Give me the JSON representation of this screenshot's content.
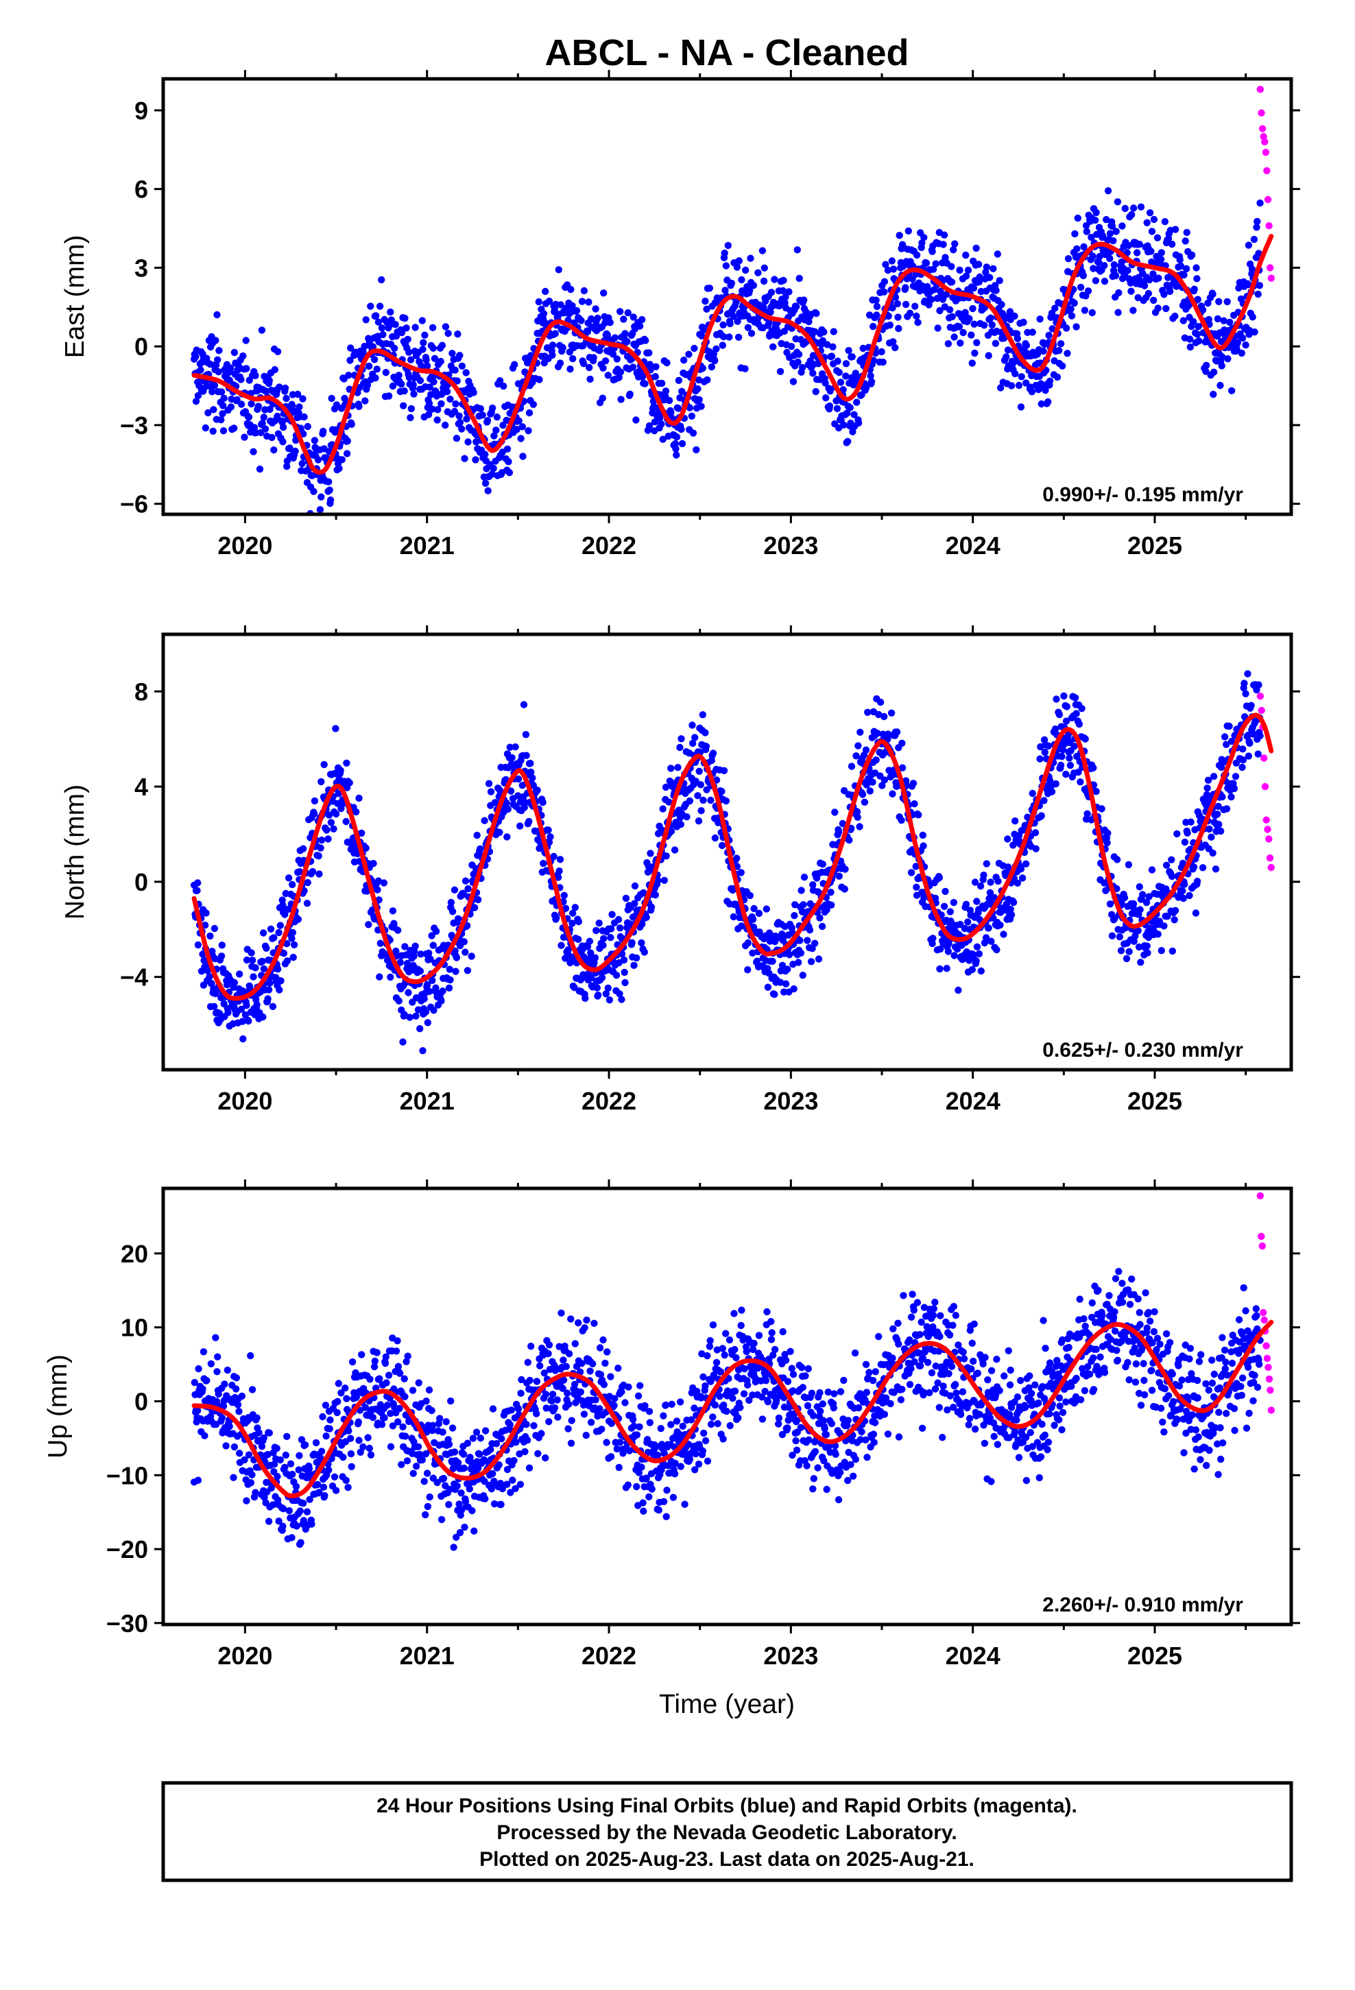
{
  "colors": {
    "final_orbits": "#0000ff",
    "rapid_orbits": "#ff00ff",
    "trend": "#ff0000",
    "frame": "#000000"
  },
  "chart_data": {
    "type": "scatter",
    "title": "ABCL  - NA - Cleaned",
    "xlabel": "Time (year)",
    "x_ticks": [
      2020,
      2021,
      2022,
      2023,
      2024,
      2025
    ],
    "xlim": [
      2019.55,
      2025.75
    ],
    "data_start": 2019.72,
    "data_end": 2025.64,
    "rapid_start": 2025.58,
    "grid": false,
    "panels": [
      {
        "name": "East",
        "ylabel": "East (mm)",
        "ylim": [
          -6.4,
          10.2
        ],
        "y_ticks": [
          -6,
          -3,
          0,
          3,
          6,
          9
        ],
        "y_tick_labels": [
          "−6",
          "−3",
          "0",
          "3",
          "6",
          "9"
        ],
        "rate_text": "0.990+/- 0.195 mm/yr",
        "scatter_sd": 0.95,
        "trend_points": [
          [
            2019.72,
            -1.1
          ],
          [
            2019.85,
            -1.3
          ],
          [
            2019.95,
            -1.7
          ],
          [
            2020.05,
            -2.0
          ],
          [
            2020.15,
            -2.0
          ],
          [
            2020.25,
            -2.7
          ],
          [
            2020.33,
            -4.0
          ],
          [
            2020.38,
            -4.7
          ],
          [
            2020.44,
            -4.7
          ],
          [
            2020.5,
            -3.8
          ],
          [
            2020.55,
            -2.7
          ],
          [
            2020.62,
            -1.2
          ],
          [
            2020.68,
            -0.3
          ],
          [
            2020.75,
            -0.2
          ],
          [
            2020.85,
            -0.6
          ],
          [
            2020.95,
            -0.9
          ],
          [
            2021.05,
            -1.0
          ],
          [
            2021.15,
            -1.5
          ],
          [
            2021.25,
            -2.7
          ],
          [
            2021.33,
            -3.8
          ],
          [
            2021.38,
            -3.9
          ],
          [
            2021.45,
            -3.1
          ],
          [
            2021.55,
            -1.3
          ],
          [
            2021.63,
            0.2
          ],
          [
            2021.7,
            0.9
          ],
          [
            2021.78,
            0.8
          ],
          [
            2021.88,
            0.3
          ],
          [
            2022.0,
            0.1
          ],
          [
            2022.1,
            -0.1
          ],
          [
            2022.2,
            -0.9
          ],
          [
            2022.28,
            -2.2
          ],
          [
            2022.34,
            -2.9
          ],
          [
            2022.4,
            -2.6
          ],
          [
            2022.48,
            -0.9
          ],
          [
            2022.56,
            0.8
          ],
          [
            2022.63,
            1.7
          ],
          [
            2022.7,
            1.9
          ],
          [
            2022.78,
            1.5
          ],
          [
            2022.88,
            1.1
          ],
          [
            2023.0,
            0.9
          ],
          [
            2023.1,
            0.3
          ],
          [
            2023.2,
            -0.9
          ],
          [
            2023.28,
            -1.9
          ],
          [
            2023.34,
            -1.9
          ],
          [
            2023.4,
            -1.1
          ],
          [
            2023.48,
            0.6
          ],
          [
            2023.56,
            2.1
          ],
          [
            2023.63,
            2.8
          ],
          [
            2023.7,
            2.9
          ],
          [
            2023.78,
            2.6
          ],
          [
            2023.88,
            2.1
          ],
          [
            2024.0,
            1.9
          ],
          [
            2024.1,
            1.5
          ],
          [
            2024.18,
            0.6
          ],
          [
            2024.26,
            -0.4
          ],
          [
            2024.34,
            -0.9
          ],
          [
            2024.4,
            -0.6
          ],
          [
            2024.48,
            1.0
          ],
          [
            2024.55,
            2.6
          ],
          [
            2024.63,
            3.6
          ],
          [
            2024.7,
            3.9
          ],
          [
            2024.78,
            3.7
          ],
          [
            2024.88,
            3.2
          ],
          [
            2025.0,
            3.0
          ],
          [
            2025.1,
            2.8
          ],
          [
            2025.18,
            2.1
          ],
          [
            2025.26,
            1.0
          ],
          [
            2025.33,
            0.1
          ],
          [
            2025.38,
            0.0
          ],
          [
            2025.45,
            0.8
          ],
          [
            2025.52,
            1.9
          ],
          [
            2025.58,
            3.2
          ],
          [
            2025.64,
            4.2
          ]
        ],
        "rapid_values": [
          9.8,
          8.9,
          8.3,
          8.0,
          7.8,
          7.4,
          6.7,
          5.6,
          4.6,
          3.0,
          2.6
        ]
      },
      {
        "name": "North",
        "ylabel": "North (mm)",
        "ylim": [
          -7.9,
          10.4
        ],
        "y_ticks": [
          -4,
          0,
          4,
          8
        ],
        "y_tick_labels": [
          "−4",
          "0",
          "4",
          "8"
        ],
        "rate_text": "0.625+/- 0.230 mm/yr",
        "scatter_sd": 0.95,
        "trend_points": [
          [
            2019.72,
            -0.7
          ],
          [
            2019.8,
            -3.2
          ],
          [
            2019.88,
            -4.6
          ],
          [
            2019.95,
            -4.9
          ],
          [
            2020.05,
            -4.6
          ],
          [
            2020.15,
            -3.5
          ],
          [
            2020.25,
            -1.6
          ],
          [
            2020.35,
            1.0
          ],
          [
            2020.44,
            3.2
          ],
          [
            2020.5,
            4.0
          ],
          [
            2020.55,
            3.6
          ],
          [
            2020.62,
            1.8
          ],
          [
            2020.7,
            -0.5
          ],
          [
            2020.78,
            -2.6
          ],
          [
            2020.86,
            -3.9
          ],
          [
            2020.94,
            -4.2
          ],
          [
            2021.02,
            -3.9
          ],
          [
            2021.1,
            -3.2
          ],
          [
            2021.2,
            -1.7
          ],
          [
            2021.3,
            0.7
          ],
          [
            2021.4,
            3.2
          ],
          [
            2021.48,
            4.5
          ],
          [
            2021.53,
            4.5
          ],
          [
            2021.6,
            3.0
          ],
          [
            2021.68,
            0.6
          ],
          [
            2021.76,
            -1.8
          ],
          [
            2021.84,
            -3.3
          ],
          [
            2021.92,
            -3.7
          ],
          [
            2022.0,
            -3.3
          ],
          [
            2022.1,
            -2.4
          ],
          [
            2022.2,
            -0.9
          ],
          [
            2022.3,
            1.7
          ],
          [
            2022.38,
            3.9
          ],
          [
            2022.46,
            5.1
          ],
          [
            2022.52,
            5.1
          ],
          [
            2022.6,
            3.4
          ],
          [
            2022.68,
            0.6
          ],
          [
            2022.76,
            -1.8
          ],
          [
            2022.84,
            -2.9
          ],
          [
            2022.9,
            -3.0
          ],
          [
            2022.98,
            -2.7
          ],
          [
            2023.08,
            -1.7
          ],
          [
            2023.18,
            -0.5
          ],
          [
            2023.28,
            1.6
          ],
          [
            2023.38,
            4.2
          ],
          [
            2023.46,
            5.6
          ],
          [
            2023.52,
            5.8
          ],
          [
            2023.6,
            4.4
          ],
          [
            2023.68,
            1.7
          ],
          [
            2023.76,
            -0.6
          ],
          [
            2023.84,
            -2.0
          ],
          [
            2023.9,
            -2.4
          ],
          [
            2023.98,
            -2.3
          ],
          [
            2024.08,
            -1.5
          ],
          [
            2024.18,
            -0.2
          ],
          [
            2024.28,
            1.6
          ],
          [
            2024.38,
            4.0
          ],
          [
            2024.46,
            5.8
          ],
          [
            2024.52,
            6.4
          ],
          [
            2024.58,
            5.9
          ],
          [
            2024.64,
            4.1
          ],
          [
            2024.72,
            1.0
          ],
          [
            2024.8,
            -1.1
          ],
          [
            2024.86,
            -1.8
          ],
          [
            2024.92,
            -1.8
          ],
          [
            2025.0,
            -1.3
          ],
          [
            2025.1,
            -0.4
          ],
          [
            2025.2,
            1.0
          ],
          [
            2025.3,
            2.9
          ],
          [
            2025.4,
            4.8
          ],
          [
            2025.48,
            6.4
          ],
          [
            2025.55,
            7.0
          ],
          [
            2025.6,
            6.6
          ],
          [
            2025.64,
            5.5
          ]
        ],
        "rapid_values": [
          7.8,
          7.2,
          6.5,
          5.2,
          4.0,
          2.6,
          2.2,
          1.8,
          1.0,
          0.6
        ]
      },
      {
        "name": "Up",
        "ylabel": "Up (mm)",
        "ylim": [
          -30.2,
          28.8
        ],
        "y_ticks": [
          -30,
          -20,
          -10,
          0,
          10,
          20
        ],
        "y_tick_labels": [
          "−30",
          "−20",
          "−10",
          "0",
          "10",
          "20"
        ],
        "rate_text": "2.260+/- 0.910 mm/yr",
        "scatter_sd": 3.8,
        "trend_points": [
          [
            2019.72,
            -0.6
          ],
          [
            2019.82,
            -0.8
          ],
          [
            2019.92,
            -2.0
          ],
          [
            2020.0,
            -4.5
          ],
          [
            2020.1,
            -9.0
          ],
          [
            2020.2,
            -12.0
          ],
          [
            2020.26,
            -12.8
          ],
          [
            2020.34,
            -11.8
          ],
          [
            2020.44,
            -8.0
          ],
          [
            2020.54,
            -3.5
          ],
          [
            2020.64,
            0.0
          ],
          [
            2020.74,
            1.3
          ],
          [
            2020.82,
            0.8
          ],
          [
            2020.92,
            -2.0
          ],
          [
            2021.02,
            -6.5
          ],
          [
            2021.12,
            -9.6
          ],
          [
            2021.22,
            -10.4
          ],
          [
            2021.32,
            -9.5
          ],
          [
            2021.42,
            -6.5
          ],
          [
            2021.52,
            -2.3
          ],
          [
            2021.62,
            1.5
          ],
          [
            2021.72,
            3.3
          ],
          [
            2021.8,
            3.6
          ],
          [
            2021.9,
            2.4
          ],
          [
            2022.0,
            -1.0
          ],
          [
            2022.1,
            -5.0
          ],
          [
            2022.2,
            -7.5
          ],
          [
            2022.28,
            -8.0
          ],
          [
            2022.38,
            -6.5
          ],
          [
            2022.48,
            -3.0
          ],
          [
            2022.58,
            1.5
          ],
          [
            2022.68,
            4.6
          ],
          [
            2022.78,
            5.5
          ],
          [
            2022.88,
            4.5
          ],
          [
            2022.98,
            1.0
          ],
          [
            2023.08,
            -3.0
          ],
          [
            2023.16,
            -5.0
          ],
          [
            2023.24,
            -5.4
          ],
          [
            2023.34,
            -3.8
          ],
          [
            2023.44,
            -0.5
          ],
          [
            2023.54,
            3.5
          ],
          [
            2023.64,
            6.5
          ],
          [
            2023.74,
            7.8
          ],
          [
            2023.84,
            7.2
          ],
          [
            2023.94,
            4.5
          ],
          [
            2024.04,
            1.0
          ],
          [
            2024.14,
            -2.0
          ],
          [
            2024.24,
            -3.4
          ],
          [
            2024.34,
            -2.5
          ],
          [
            2024.44,
            0.5
          ],
          [
            2024.54,
            4.5
          ],
          [
            2024.64,
            8.0
          ],
          [
            2024.74,
            10.0
          ],
          [
            2024.82,
            10.3
          ],
          [
            2024.92,
            8.7
          ],
          [
            2025.02,
            5.0
          ],
          [
            2025.12,
            1.0
          ],
          [
            2025.2,
            -0.8
          ],
          [
            2025.28,
            -1.2
          ],
          [
            2025.36,
            0.5
          ],
          [
            2025.46,
            4.5
          ],
          [
            2025.56,
            8.5
          ],
          [
            2025.64,
            10.7
          ]
        ],
        "rapid_values": [
          27.8,
          22.3,
          21.0,
          12.0,
          11.0,
          9.5,
          7.5,
          5.8,
          4.6,
          3.0,
          1.5,
          -1.2
        ]
      }
    ]
  },
  "caption": {
    "line1": "24 Hour Positions Using Final Orbits (blue) and Rapid Orbits (magenta).",
    "line2": "Processed by the Nevada Geodetic Laboratory.",
    "line3": "Plotted on 2025-Aug-23. Last data on 2025-Aug-21."
  }
}
